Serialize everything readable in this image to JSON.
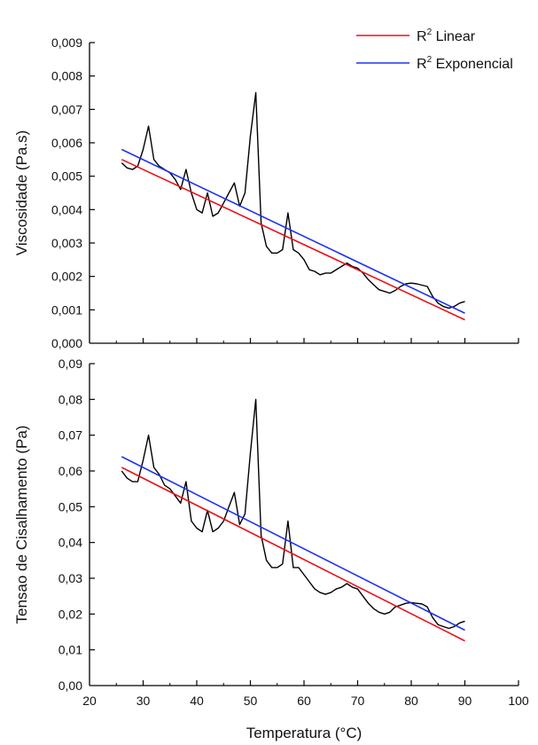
{
  "colors": {
    "data": "#000000",
    "linear": "#e8101a",
    "exponencial": "#1e33f0",
    "axis": "#000000"
  },
  "chart_data": [
    {
      "type": "line",
      "ylabel": "Viscosidade (Pa.s)",
      "xlabel": "",
      "xlim": [
        20,
        100
      ],
      "ylim": [
        0,
        0.009
      ],
      "yticks": [
        0,
        0.001,
        0.002,
        0.003,
        0.004,
        0.005,
        0.006,
        0.007,
        0.008,
        0.009
      ],
      "ytick_labels": [
        "0,000",
        "0,001",
        "0,002",
        "0,003",
        "0,004",
        "0,005",
        "0,006",
        "0,007",
        "0,008",
        "0,009"
      ],
      "legend": {
        "position": "top-right",
        "entries": [
          {
            "base": "R",
            "sup": "2",
            "text": " Linear",
            "color_key": "linear"
          },
          {
            "base": "R",
            "sup": "2",
            "text": " Exponencial",
            "color_key": "exponencial"
          }
        ]
      },
      "series": [
        {
          "key": "data",
          "x": [
            26,
            27,
            28,
            29,
            30,
            31,
            32,
            33,
            34,
            35,
            36,
            37,
            38,
            39,
            40,
            41,
            42,
            43,
            44,
            45,
            46,
            47,
            48,
            49,
            50,
            51,
            52,
            53,
            54,
            55,
            56,
            57,
            58,
            59,
            60,
            61,
            62,
            63,
            64,
            65,
            66,
            67,
            68,
            69,
            70,
            71,
            72,
            73,
            74,
            75,
            76,
            77,
            78,
            79,
            80,
            81,
            82,
            83,
            84,
            85,
            86,
            87,
            88,
            89,
            90
          ],
          "y": [
            0.0054,
            0.00525,
            0.0052,
            0.0053,
            0.0058,
            0.0065,
            0.0055,
            0.0053,
            0.0052,
            0.0051,
            0.0049,
            0.0046,
            0.0052,
            0.0045,
            0.004,
            0.0039,
            0.0045,
            0.0038,
            0.0039,
            0.0042,
            0.0045,
            0.0048,
            0.0041,
            0.0045,
            0.0062,
            0.0075,
            0.0036,
            0.0029,
            0.0027,
            0.0027,
            0.0028,
            0.0039,
            0.0028,
            0.0027,
            0.0025,
            0.0022,
            0.00215,
            0.00205,
            0.0021,
            0.0021,
            0.0022,
            0.0023,
            0.0024,
            0.0023,
            0.00225,
            0.0021,
            0.0019,
            0.00175,
            0.0016,
            0.00155,
            0.0015,
            0.00158,
            0.0017,
            0.00178,
            0.0018,
            0.00178,
            0.00174,
            0.0017,
            0.0014,
            0.0012,
            0.0011,
            0.00105,
            0.0011,
            0.0012,
            0.00125
          ]
        },
        {
          "key": "linear",
          "x": [
            26,
            90
          ],
          "y": [
            0.0055,
            0.0007
          ]
        },
        {
          "key": "exponencial",
          "x": [
            26,
            90
          ],
          "y": [
            0.0058,
            0.0009
          ]
        }
      ]
    },
    {
      "type": "line",
      "ylabel": "Tensao de Cisalhamento (Pa)",
      "xlabel": "Temperatura (°C)",
      "xlim": [
        20,
        100
      ],
      "ylim": [
        0,
        0.09
      ],
      "xticks": [
        20,
        30,
        40,
        50,
        60,
        70,
        80,
        90,
        100
      ],
      "xtick_labels": [
        "20",
        "30",
        "40",
        "50",
        "60",
        "70",
        "80",
        "90",
        "100"
      ],
      "yticks": [
        0,
        0.01,
        0.02,
        0.03,
        0.04,
        0.05,
        0.06,
        0.07,
        0.08,
        0.09
      ],
      "ytick_labels": [
        "0,00",
        "0,01",
        "0,02",
        "0,03",
        "0,04",
        "0,05",
        "0,06",
        "0,07",
        "0,08",
        "0,09"
      ],
      "series": [
        {
          "key": "data",
          "x": [
            26,
            27,
            28,
            29,
            30,
            31,
            32,
            33,
            34,
            35,
            36,
            37,
            38,
            39,
            40,
            41,
            42,
            43,
            44,
            45,
            46,
            47,
            48,
            49,
            50,
            51,
            52,
            53,
            54,
            55,
            56,
            57,
            58,
            59,
            60,
            61,
            62,
            63,
            64,
            65,
            66,
            67,
            68,
            69,
            70,
            71,
            72,
            73,
            74,
            75,
            76,
            77,
            78,
            79,
            80,
            81,
            82,
            83,
            84,
            85,
            86,
            87,
            88,
            89,
            90
          ],
          "y": [
            0.06,
            0.058,
            0.057,
            0.057,
            0.063,
            0.07,
            0.061,
            0.059,
            0.056,
            0.055,
            0.053,
            0.051,
            0.057,
            0.046,
            0.044,
            0.043,
            0.049,
            0.043,
            0.044,
            0.046,
            0.05,
            0.054,
            0.045,
            0.048,
            0.065,
            0.08,
            0.042,
            0.035,
            0.033,
            0.033,
            0.034,
            0.046,
            0.033,
            0.033,
            0.031,
            0.029,
            0.027,
            0.026,
            0.0255,
            0.026,
            0.027,
            0.0275,
            0.0285,
            0.0275,
            0.027,
            0.025,
            0.023,
            0.0215,
            0.0205,
            0.02,
            0.0205,
            0.022,
            0.0225,
            0.023,
            0.0232,
            0.023,
            0.0228,
            0.022,
            0.019,
            0.017,
            0.0165,
            0.016,
            0.0165,
            0.0175,
            0.018
          ]
        },
        {
          "key": "linear",
          "x": [
            26,
            90
          ],
          "y": [
            0.061,
            0.0125
          ]
        },
        {
          "key": "exponencial",
          "x": [
            26,
            90
          ],
          "y": [
            0.064,
            0.0155
          ]
        }
      ]
    }
  ]
}
